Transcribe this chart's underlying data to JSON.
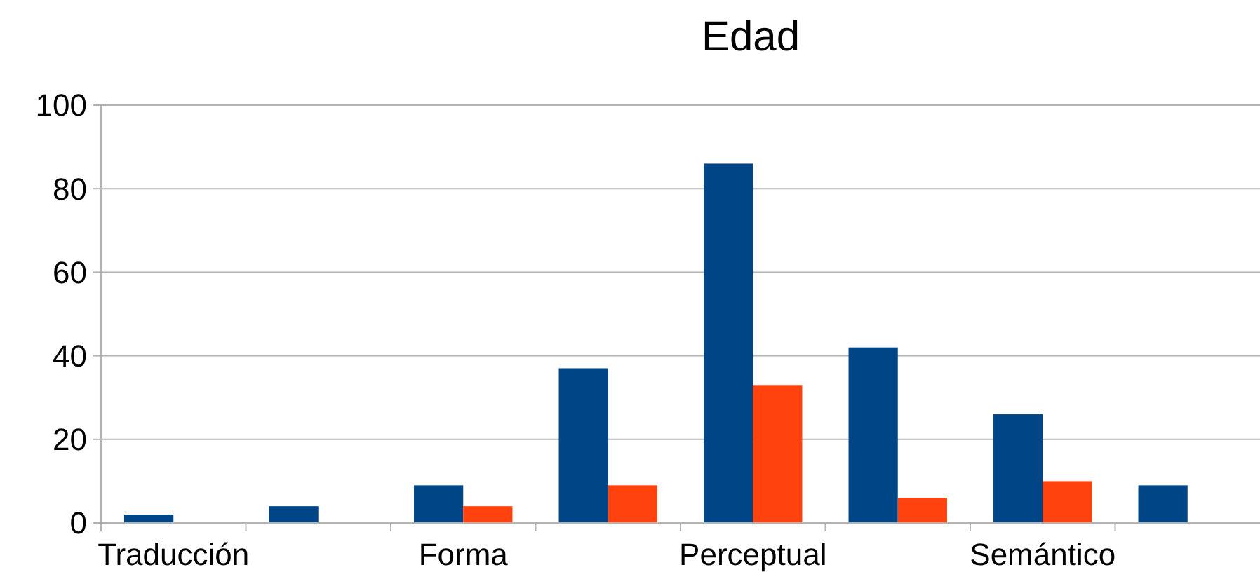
{
  "chart_data": {
    "type": "bar",
    "title": "Edad",
    "categories": [
      "Traducción",
      null,
      "Forma",
      null,
      "Perceptual",
      null,
      "Semántico",
      null
    ],
    "series": [
      {
        "color": "#004586",
        "values": [
          2,
          4,
          9,
          37,
          86,
          42,
          26,
          9
        ]
      },
      {
        "color": "#ff420e",
        "values": [
          0,
          0,
          4,
          9,
          33,
          6,
          10,
          0
        ]
      }
    ],
    "ylim": [
      0,
      100
    ],
    "yticks": [
      0,
      20,
      40,
      60,
      80,
      100
    ],
    "grid": "y"
  }
}
